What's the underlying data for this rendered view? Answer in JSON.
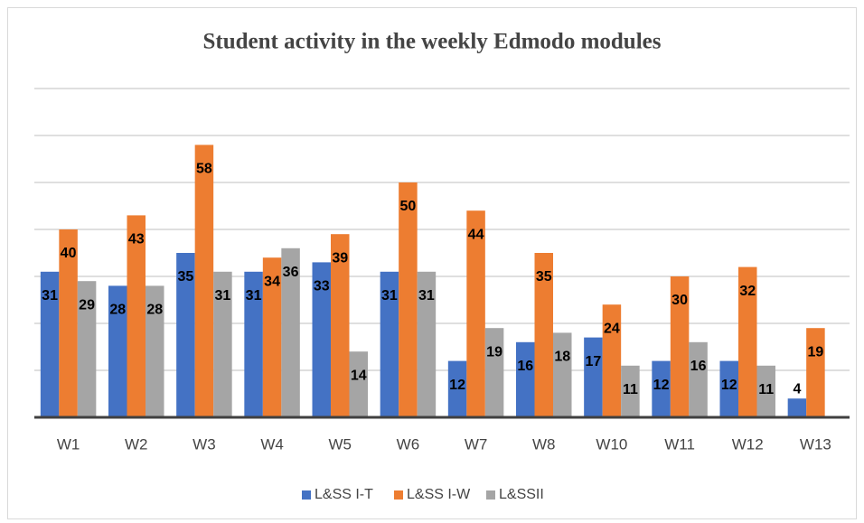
{
  "chart_data": {
    "type": "bar",
    "title": "Student activity in the weekly Edmodo modules",
    "categories": [
      "W1",
      "W2",
      "W3",
      "W4",
      "W5",
      "W6",
      "W7",
      "W8",
      "W10",
      "W11",
      "W12",
      "W13"
    ],
    "series": [
      {
        "name": "L&SS I-T",
        "color": "#4472c4",
        "values": [
          31,
          28,
          35,
          31,
          33,
          31,
          12,
          16,
          17,
          12,
          12,
          4
        ]
      },
      {
        "name": "L&SS I-W",
        "color": "#ed7d31",
        "values": [
          40,
          43,
          58,
          34,
          39,
          50,
          44,
          35,
          24,
          30,
          32,
          19
        ]
      },
      {
        "name": "L&SSII",
        "color": "#a5a5a5",
        "values": [
          29,
          28,
          31,
          36,
          14,
          31,
          19,
          18,
          11,
          16,
          11,
          null
        ]
      }
    ],
    "ylim": [
      0,
      70
    ],
    "yticks": [
      0,
      10,
      20,
      30,
      40,
      50,
      60,
      70
    ],
    "grid": true,
    "legend": "bottom"
  }
}
